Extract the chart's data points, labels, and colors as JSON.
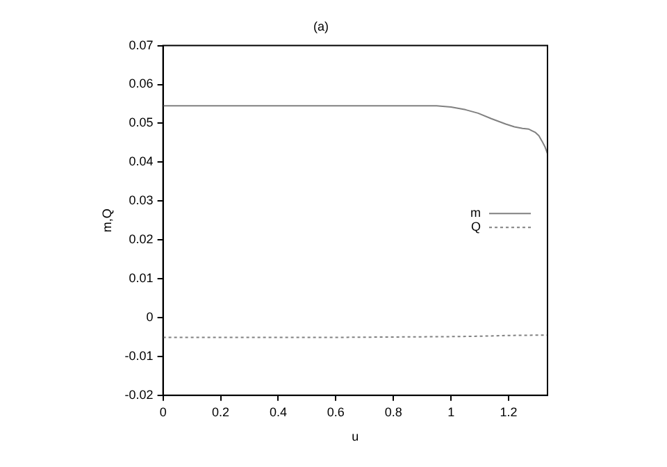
{
  "chart_data": {
    "type": "line",
    "title": "(a)",
    "xlabel": "u",
    "ylabel": "m,Q",
    "xlim": [
      0,
      1.335
    ],
    "xticks": [
      0,
      0.2,
      0.4,
      0.6,
      0.8,
      1,
      1.2
    ],
    "ylim": [
      -0.02,
      0.07
    ],
    "yticks": [
      -0.02,
      -0.01,
      0,
      0.01,
      0.02,
      0.03,
      0.04,
      0.05,
      0.06,
      0.07
    ],
    "grid": false,
    "legend": "right",
    "marker": "none",
    "series": [
      {
        "name": "m",
        "color": "#808080",
        "line_style": "solid",
        "x": [
          0,
          0.2,
          0.4,
          0.6,
          0.8,
          0.95,
          1.0,
          1.05,
          1.094,
          1.14,
          1.19,
          1.22,
          1.248,
          1.27,
          1.292,
          1.305,
          1.316,
          1.326,
          1.335
        ],
        "values": [
          0.0545,
          0.0545,
          0.0545,
          0.0545,
          0.0545,
          0.0545,
          0.0542,
          0.0535,
          0.0526,
          0.0512,
          0.0498,
          0.0491,
          0.0487,
          0.0485,
          0.0477,
          0.0468,
          0.0454,
          0.044,
          0.0422
        ]
      },
      {
        "name": "Q",
        "color": "#808080",
        "line_style": "dotted",
        "x": [
          0,
          0.2,
          0.4,
          0.6,
          0.8,
          1.0,
          1.1,
          1.2,
          1.335
        ],
        "values": [
          -0.0051,
          -0.0051,
          -0.0051,
          -0.0051,
          -0.005,
          -0.0049,
          -0.0048,
          -0.0046,
          -0.0045
        ]
      }
    ]
  }
}
